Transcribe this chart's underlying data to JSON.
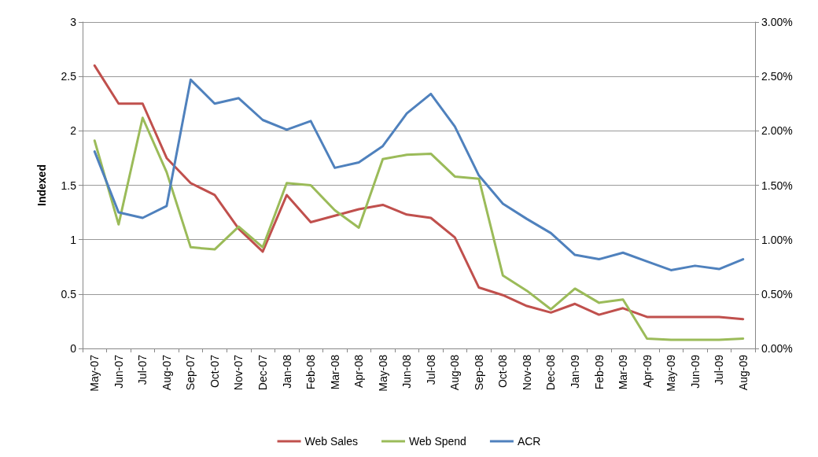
{
  "chart_data": {
    "type": "line",
    "ylabel": "Indexed",
    "categories": [
      "May-07",
      "Jun-07",
      "Jul-07",
      "Aug-07",
      "Sep-07",
      "Oct-07",
      "Nov-07",
      "Dec-07",
      "Jan-08",
      "Feb-08",
      "Mar-08",
      "Apr-08",
      "May-08",
      "Jun-08",
      "Jul-08",
      "Aug-08",
      "Sep-08",
      "Oct-08",
      "Nov-08",
      "Dec-08",
      "Jan-09",
      "Feb-09",
      "Mar-09",
      "Apr-09",
      "May-09",
      "Jun-09",
      "Jul-09",
      "Aug-09"
    ],
    "series": [
      {
        "name": "Web Sales",
        "color": "#c0504d",
        "values": [
          2.6,
          2.25,
          2.25,
          1.75,
          1.52,
          1.41,
          1.1,
          0.89,
          1.41,
          1.16,
          1.22,
          1.28,
          1.32,
          1.23,
          1.2,
          1.02,
          0.56,
          0.49,
          0.39,
          0.33,
          0.41,
          0.31,
          0.37,
          0.29,
          0.29,
          0.29,
          0.29,
          0.27
        ]
      },
      {
        "name": "Web Spend",
        "color": "#9bbb59",
        "values": [
          1.91,
          1.14,
          2.12,
          1.62,
          0.93,
          0.91,
          1.12,
          0.93,
          1.52,
          1.5,
          1.27,
          1.11,
          1.74,
          1.78,
          1.79,
          1.58,
          1.56,
          0.67,
          0.53,
          0.36,
          0.55,
          0.42,
          0.45,
          0.09,
          0.08,
          0.08,
          0.08,
          0.09
        ]
      },
      {
        "name": "ACR",
        "color": "#4f81bd",
        "axis": "y2",
        "values": [
          1.81,
          1.25,
          1.2,
          1.31,
          2.47,
          2.25,
          2.3,
          2.1,
          2.01,
          2.09,
          1.66,
          1.71,
          1.86,
          2.16,
          2.34,
          2.04,
          1.59,
          1.33,
          1.19,
          1.06,
          0.86,
          0.82,
          0.88,
          0.8,
          0.72,
          0.76,
          0.73,
          0.82
        ]
      }
    ],
    "ylim": [
      0,
      3
    ],
    "yticks": [
      0,
      0.5,
      1,
      1.5,
      2,
      2.5,
      3
    ],
    "y2lim": [
      0,
      3
    ],
    "y2ticks": [
      {
        "value": 0,
        "label": "0.00%"
      },
      {
        "value": 0.5,
        "label": "0.50%"
      },
      {
        "value": 1,
        "label": "1.00%"
      },
      {
        "value": 1.5,
        "label": "1.50%"
      },
      {
        "value": 2,
        "label": "2.00%"
      },
      {
        "value": 2.5,
        "label": "2.50%"
      },
      {
        "value": 3,
        "label": "3.00%"
      }
    ],
    "grid": "y",
    "legend": "bottom",
    "marker": "none",
    "line_style": "solid"
  }
}
